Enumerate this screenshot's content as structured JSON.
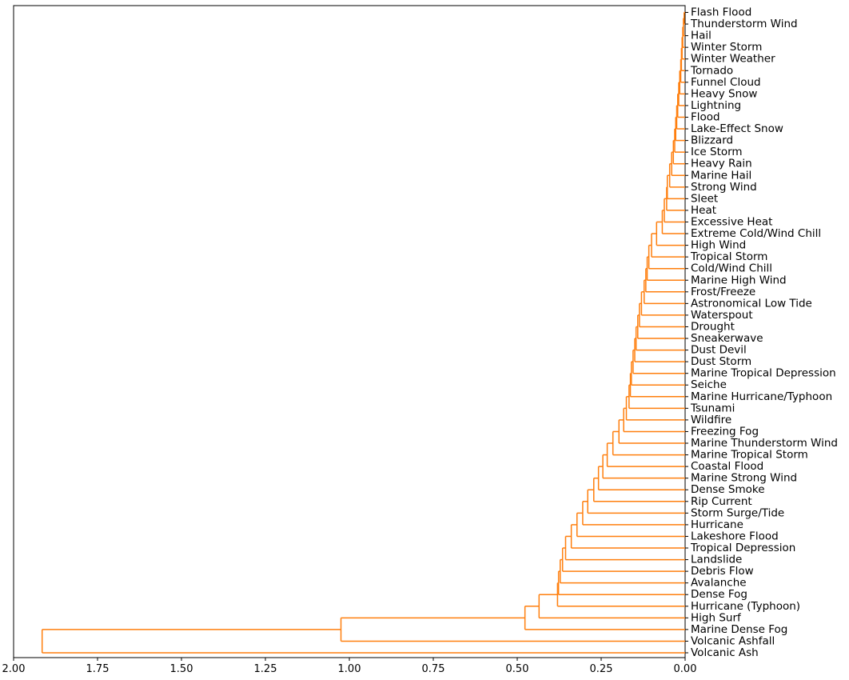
{
  "chart_data": {
    "type": "dendrogram",
    "orientation": "left",
    "color": "#ff7f0e",
    "xlim": [
      2.0,
      0.0
    ],
    "xticks": [
      2.0,
      1.75,
      1.5,
      1.25,
      1.0,
      0.75,
      0.5,
      0.25,
      0.0
    ],
    "xtick_labels": [
      "2.00",
      "1.75",
      "1.50",
      "1.25",
      "1.00",
      "0.75",
      "0.50",
      "0.25",
      "0.00"
    ],
    "leaves": [
      "Flash Flood",
      "Thunderstorm Wind",
      "Hail",
      "Winter Storm",
      "Winter Weather",
      "Tornado",
      "Funnel Cloud",
      "Heavy Snow",
      "Lightning",
      "Flood",
      "Lake-Effect Snow",
      "Blizzard",
      "Ice Storm",
      "Heavy Rain",
      "Marine Hail",
      "Strong Wind",
      "Sleet",
      "Heat",
      "Excessive Heat",
      "Extreme Cold/Wind Chill",
      "High Wind",
      "Tropical Storm",
      "Cold/Wind Chill",
      "Marine High Wind",
      "Frost/Freeze",
      "Astronomical Low Tide",
      "Waterspout",
      "Drought",
      "Sneakerwave",
      "Dust Devil",
      "Dust Storm",
      "Marine Tropical Depression",
      "Seiche",
      "Marine Hurricane/Typhoon",
      "Tsunami",
      "Wildfire",
      "Freezing Fog",
      "Marine Thunderstorm Wind",
      "Marine Tropical Storm",
      "Coastal Flood",
      "Marine Strong Wind",
      "Dense Smoke",
      "Rip Current",
      "Storm Surge/Tide",
      "Hurricane",
      "Lakeshore Flood",
      "Tropical Depression",
      "Landslide",
      "Debris Flow",
      "Avalanche",
      "Dense Fog",
      "Hurricane (Typhoon)",
      "High Surf",
      "Marine Dense Fog",
      "Volcanic Ashfall",
      "Volcanic Ash"
    ],
    "merge_heights": [
      0.003,
      0.005,
      0.007,
      0.009,
      0.011,
      0.013,
      0.016,
      0.019,
      0.022,
      0.025,
      0.028,
      0.031,
      0.035,
      0.04,
      0.046,
      0.053,
      0.055,
      0.062,
      0.068,
      0.085,
      0.1,
      0.108,
      0.113,
      0.117,
      0.122,
      0.13,
      0.136,
      0.141,
      0.146,
      0.15,
      0.155,
      0.16,
      0.163,
      0.167,
      0.175,
      0.183,
      0.197,
      0.215,
      0.232,
      0.245,
      0.258,
      0.272,
      0.29,
      0.305,
      0.322,
      0.339,
      0.356,
      0.365,
      0.372,
      0.377,
      0.38,
      0.435,
      0.477,
      1.025,
      1.915
    ]
  }
}
